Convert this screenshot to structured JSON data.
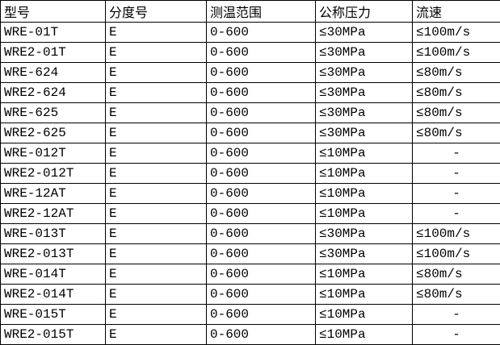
{
  "page": {
    "background_color": "#ffffff",
    "text_color": "#000000",
    "border_color": "#000000"
  },
  "table": {
    "columns": [
      "型号",
      "分度号",
      "测温范围",
      "公称压力",
      "流速"
    ],
    "rows": [
      [
        "WRE-01T",
        "E",
        "0-600",
        "≤30MPa",
        "≤100m/s"
      ],
      [
        "WRE2-01T",
        "E",
        "0-600",
        "≤30MPa",
        "≤100m/s"
      ],
      [
        "WRE-624",
        "E",
        "0-600",
        "≤30MPa",
        "≤80m/s"
      ],
      [
        "WRE2-624",
        "E",
        "0-600",
        "≤30MPa",
        "≤80m/s"
      ],
      [
        "WRE-625",
        "E",
        "0-600",
        "≤30MPa",
        "≤80m/s"
      ],
      [
        "WRE2-625",
        "E",
        "0-600",
        "≤30MPa",
        "≤80m/s"
      ],
      [
        "WRE-012T",
        "E",
        "0-600",
        "≤10MPa",
        "-"
      ],
      [
        "WRE2-012T",
        "E",
        "0-600",
        "≤10MPa",
        "-"
      ],
      [
        "WRE-12AT",
        "E",
        "0-600",
        "≤10MPa",
        "-"
      ],
      [
        "WRE2-12AT",
        "E",
        "0-600",
        "≤10MPa",
        "-"
      ],
      [
        "WRE-013T",
        "E",
        "0-600",
        "≤30MPa",
        "≤100m/s"
      ],
      [
        "WRE2-013T",
        "E",
        "0-600",
        "≤30MPa",
        "≤100m/s"
      ],
      [
        "WRE-014T",
        "E",
        "0-600",
        "≤10MPa",
        "≤80m/s"
      ],
      [
        "WRE2-014T",
        "E",
        "0-600",
        "≤10MPa",
        "≤80m/s"
      ],
      [
        "WRE-015T",
        "E",
        "0-600",
        "≤10MPa",
        "-"
      ],
      [
        "WRE2-015T",
        "E",
        "0-600",
        "≤10MPa",
        "-"
      ]
    ]
  }
}
